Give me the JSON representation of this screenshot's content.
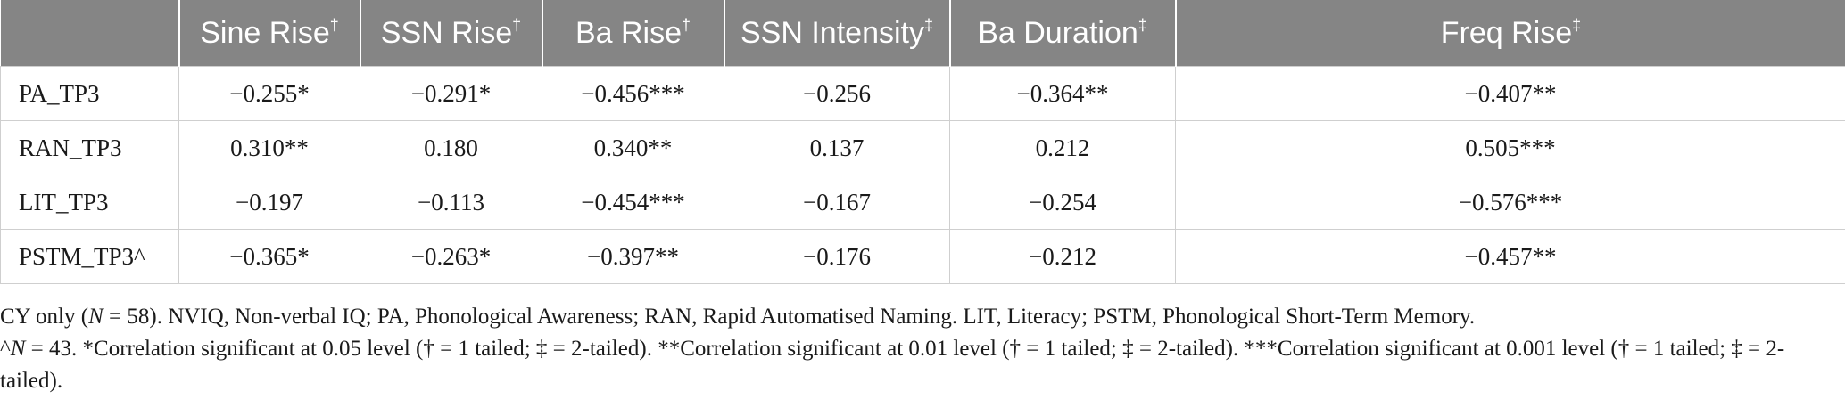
{
  "table": {
    "header": {
      "corner": "",
      "columns": [
        {
          "label": "Sine Rise",
          "mark": "†"
        },
        {
          "label": "SSN Rise",
          "mark": "†"
        },
        {
          "label": "Ba Rise",
          "mark": "†"
        },
        {
          "label": "SSN Intensity",
          "mark": "‡"
        },
        {
          "label": "Ba Duration",
          "mark": "‡"
        },
        {
          "label": "Freq Rise",
          "mark": "‡"
        }
      ]
    },
    "rows": [
      {
        "label": "PA_TP3",
        "cells": [
          "−0.255*",
          "−0.291*",
          "−0.456***",
          "−0.256",
          "−0.364**",
          "−0.407**"
        ]
      },
      {
        "label": "RAN_TP3",
        "cells": [
          "0.310**",
          "0.180",
          "0.340**",
          "0.137",
          "0.212",
          "0.505***"
        ]
      },
      {
        "label": "LIT_TP3",
        "cells": [
          "−0.197",
          "−0.113",
          "−0.454***",
          "−0.167",
          "−0.254",
          "−0.576***"
        ]
      },
      {
        "label": "PSTM_TP3^",
        "cells": [
          "−0.365*",
          "−0.263*",
          "−0.397**",
          "−0.176",
          "−0.212",
          "−0.457**"
        ]
      }
    ]
  },
  "notes": {
    "line1_prefix": "CY only (",
    "line1_n": "N",
    "line1_rest": " = 58). NVIQ, Non-verbal IQ; PA, Phonological Awareness; RAN, Rapid Automatised Naming. LIT, Literacy; PSTM, Phonological Short-Term Memory.",
    "line2_prefix": "^",
    "line2_n": "N",
    "line2_rest": " = 43. *Correlation significant at 0.05 level († = 1 tailed; ‡ = 2-tailed). **Correlation significant at 0.01 level († = 1 tailed; ‡ = 2-tailed). ***Correlation significant at 0.001 level († = 1 tailed; ‡ = 2-tailed)."
  },
  "colors": {
    "header_bg": "#858585",
    "header_text": "#ffffff",
    "grid": "#cfcfcf",
    "body_text": "#1a1a1a"
  }
}
